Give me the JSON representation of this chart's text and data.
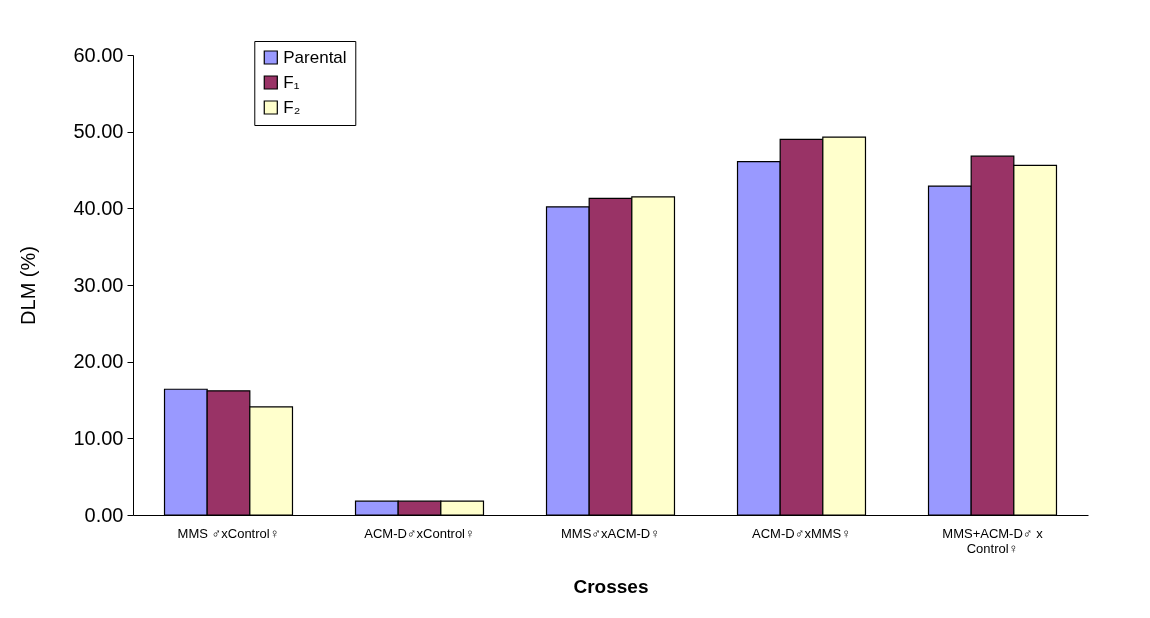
{
  "chart_data": {
    "type": "bar",
    "xlabel": "Crosses",
    "ylabel": "DLM (%)",
    "categories": [
      "MMS ♂xControl♀",
      "ACM-D♂xControl♀",
      "MMS♂xACM-D♀",
      "ACM-D♂xMMS♀",
      "MMS+ACM-D♂ x Control♀"
    ],
    "series": [
      {
        "name": "Parental",
        "color": "#9999ff",
        "values": [
          16.4,
          1.8,
          40.2,
          46.1,
          42.9
        ]
      },
      {
        "name": "F₁",
        "color": "#993366",
        "values": [
          16.2,
          1.8,
          41.3,
          49.0,
          46.8
        ]
      },
      {
        "name": "F₂",
        "color": "#ffffcc",
        "values": [
          14.1,
          1.8,
          41.5,
          49.3,
          45.6
        ]
      }
    ],
    "ylim": [
      0,
      60
    ],
    "yticks": [
      {
        "value": 0,
        "label": "0.00"
      },
      {
        "value": 10,
        "label": "10.00"
      },
      {
        "value": 20,
        "label": "20.00"
      },
      {
        "value": 30,
        "label": "30.00"
      },
      {
        "value": 40,
        "label": "40.00"
      },
      {
        "value": 50,
        "label": "50.00"
      },
      {
        "value": 60,
        "label": "60.00"
      }
    ],
    "grid": false,
    "legend": "top left"
  }
}
